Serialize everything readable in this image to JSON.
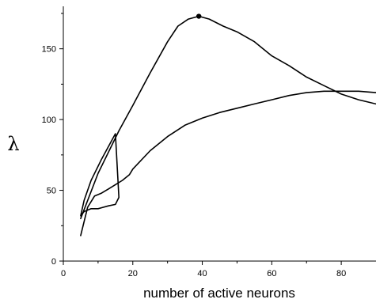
{
  "chart_data": {
    "type": "line",
    "title": "",
    "xlabel": "number of active neurons",
    "ylabel": "λ",
    "xlim": [
      0,
      90
    ],
    "ylim": [
      0,
      180
    ],
    "x_ticks": [
      0,
      20,
      40,
      60,
      80
    ],
    "y_ticks": [
      0,
      50,
      100,
      150
    ],
    "grid": false,
    "legend": "none",
    "colors": {
      "line": "#000000",
      "axis": "#000000",
      "background": "#ffffff"
    },
    "series": [
      {
        "x": [
          5,
          10,
          16,
          20,
          25,
          30,
          33,
          36,
          39,
          42,
          46,
          50,
          55,
          60,
          65,
          70,
          75,
          80,
          85,
          90
        ],
        "y": [
          30,
          62,
          92,
          110,
          133,
          155,
          166,
          171,
          173,
          171,
          166,
          162,
          155,
          145,
          138,
          130,
          124,
          118,
          114,
          111
        ]
      },
      {
        "x": [
          5,
          6,
          8,
          10,
          13,
          15,
          16,
          15,
          11,
          8,
          6,
          5
        ],
        "y": [
          32,
          35,
          37,
          37,
          39,
          40,
          45,
          90,
          72,
          57,
          43,
          32
        ]
      },
      {
        "x": [
          5,
          7,
          9,
          11,
          13,
          15,
          17,
          19,
          20,
          25,
          30,
          35,
          40,
          45,
          50,
          55,
          60,
          65,
          70,
          75,
          80,
          85,
          90
        ],
        "y": [
          18,
          38,
          46,
          48,
          51,
          54,
          57,
          61,
          65,
          78,
          88,
          96,
          101,
          105,
          108,
          111,
          114,
          117,
          119,
          120,
          120,
          120,
          119
        ]
      }
    ],
    "highlight_point": {
      "x": 39,
      "y": 173
    }
  }
}
